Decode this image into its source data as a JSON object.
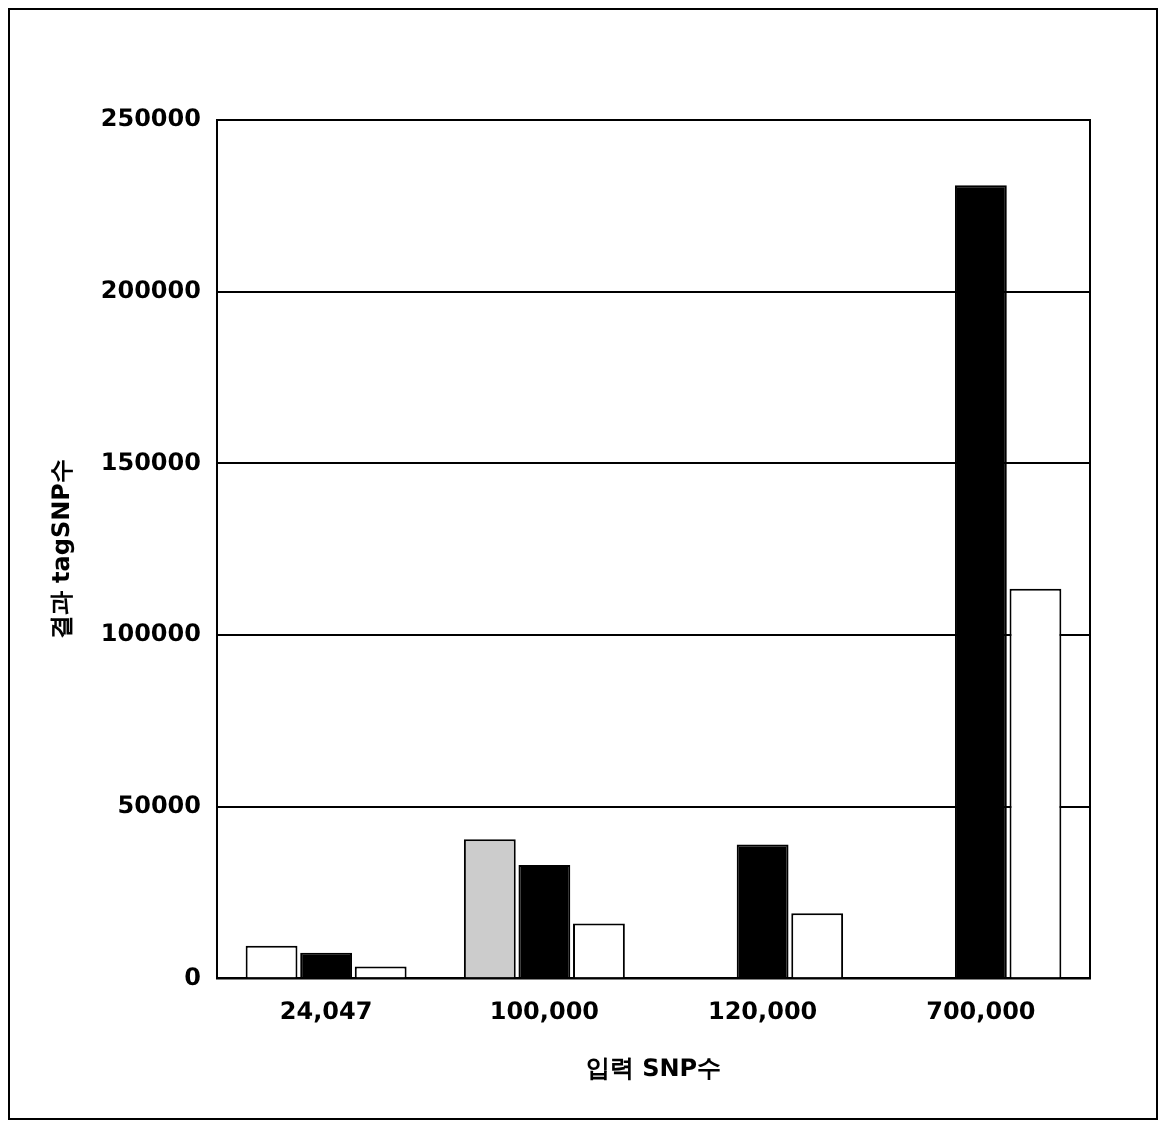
{
  "chart_data": {
    "type": "bar",
    "xlabel": "입력 SNP수",
    "ylabel": "결과 tagSNP수",
    "categories": [
      "24,047",
      "100,000",
      "120,000",
      "700,000"
    ],
    "series": [
      {
        "color": "#ffffff",
        "colors": [
          "#ffffff",
          "#cccccc",
          null,
          null
        ],
        "values": [
          9500,
          40500,
          null,
          null
        ]
      },
      {
        "color": "#000000",
        "values": [
          7500,
          33000,
          39000,
          231000
        ]
      },
      {
        "color": "#ffffff",
        "values": [
          3500,
          16000,
          19000,
          113500
        ]
      }
    ],
    "ylim": [
      0,
      250000
    ],
    "yticks": [
      0,
      50000,
      100000,
      150000,
      200000,
      250000
    ],
    "grid": "y"
  }
}
